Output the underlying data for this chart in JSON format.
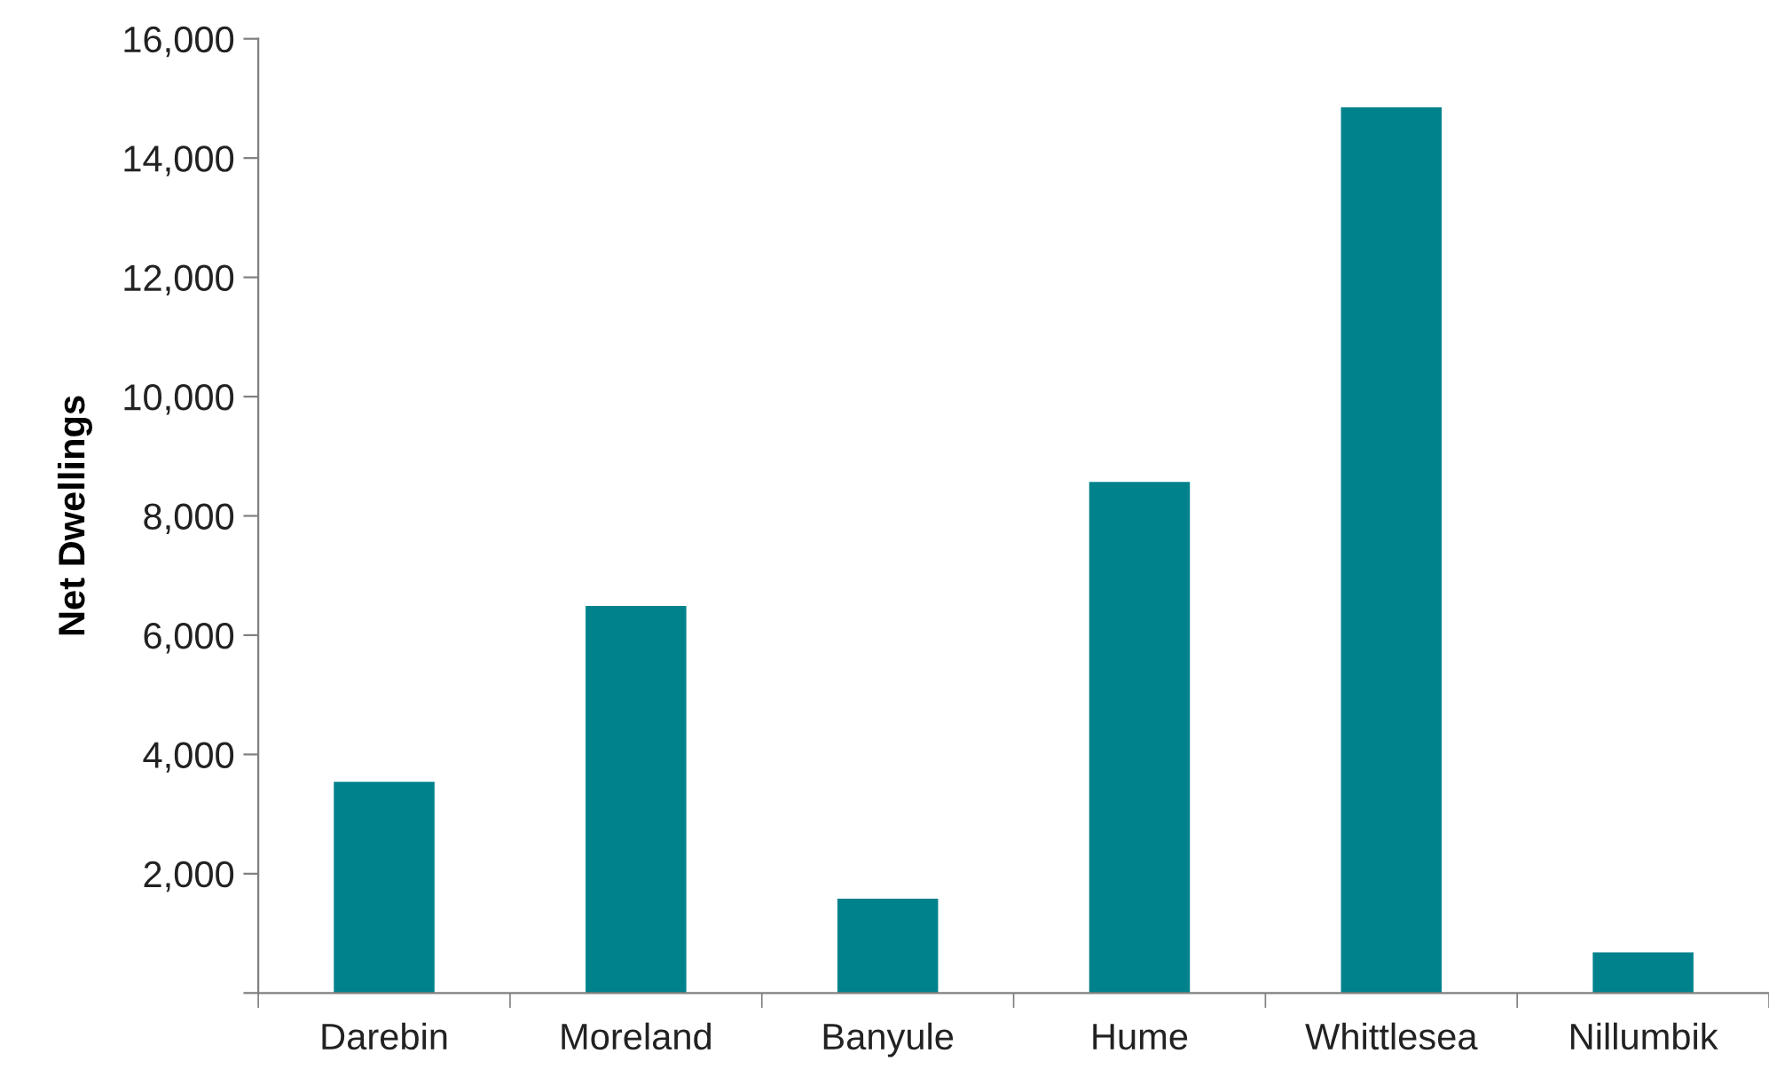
{
  "chart_data": {
    "type": "bar",
    "ylabel": "Net Dwellings",
    "categories": [
      "Darebin",
      "Moreland",
      "Banyule",
      "Hume",
      "Whittlesea",
      "Nillumbik"
    ],
    "values": [
      3540,
      6490,
      1580,
      8570,
      14850,
      680
    ],
    "color": "#00828c",
    "ylim": [
      0,
      16000
    ],
    "yticks": [
      {
        "value": 0,
        "label": null
      },
      {
        "value": 2000,
        "label": "2,000"
      },
      {
        "value": 4000,
        "label": "4,000"
      },
      {
        "value": 6000,
        "label": "6,000"
      },
      {
        "value": 8000,
        "label": "8,000"
      },
      {
        "value": 10000,
        "label": "10,000"
      },
      {
        "value": 12000,
        "label": "12,000"
      },
      {
        "value": 14000,
        "label": "14,000"
      },
      {
        "value": 16000,
        "label": "16,000"
      }
    ],
    "grid": false
  }
}
